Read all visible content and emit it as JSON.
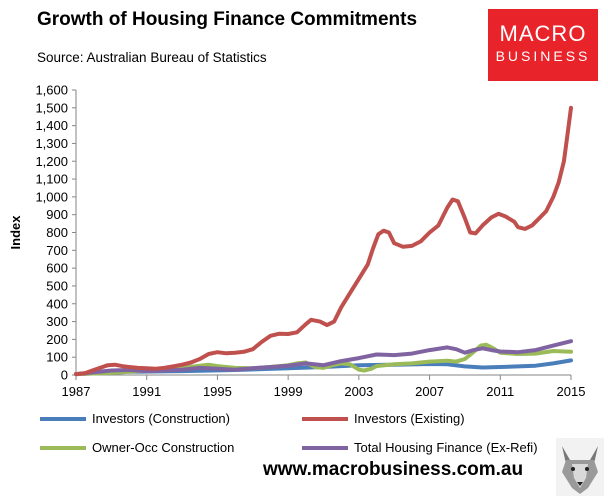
{
  "header": {
    "title": "Growth of Housing Finance Commitments",
    "source": "Source: Australian Bureau of Statistics"
  },
  "logo": {
    "line1": "MACRO",
    "line2": "BUSINESS",
    "color": "#e8232a"
  },
  "footer": {
    "url": "www.macrobusiness.com.au",
    "mascot": "wolf-mascot"
  },
  "chart_data": {
    "type": "line",
    "title": "Growth of Housing Finance Commitments",
    "xlabel": "",
    "ylabel": "Index",
    "xlim": [
      1987,
      2015
    ],
    "ylim": [
      0,
      1600
    ],
    "x_ticks": [
      1987,
      1991,
      1995,
      1999,
      2003,
      2007,
      2011,
      2015
    ],
    "y_ticks": [
      0,
      100,
      200,
      300,
      400,
      500,
      600,
      700,
      800,
      900,
      1000,
      1100,
      1200,
      1300,
      1400,
      1500,
      1600
    ],
    "x_tick_labels": [
      "1987",
      "1991",
      "1995",
      "1999",
      "2003",
      "2007",
      "2011",
      "2015"
    ],
    "y_tick_labels": [
      "0",
      "100",
      "200",
      "300",
      "400",
      "500",
      "600",
      "700",
      "800",
      "900",
      "1,000",
      "1,100",
      "1,200",
      "1,300",
      "1,400",
      "1,500",
      "1,600"
    ],
    "grid": false,
    "legend_position": "bottom",
    "series": [
      {
        "name": "Investors (Construction)",
        "color": "#4a7eba",
        "points": [
          [
            1987,
            5
          ],
          [
            1990,
            18
          ],
          [
            1993,
            22
          ],
          [
            1996,
            28
          ],
          [
            1999,
            38
          ],
          [
            2001,
            45
          ],
          [
            2003,
            55
          ],
          [
            2005,
            58
          ],
          [
            2007,
            62
          ],
          [
            2008,
            60
          ],
          [
            2009,
            48
          ],
          [
            2010,
            42
          ],
          [
            2011,
            45
          ],
          [
            2012,
            48
          ],
          [
            2013,
            52
          ],
          [
            2014,
            65
          ],
          [
            2015,
            82
          ]
        ]
      },
      {
        "name": "Investors (Existing)",
        "color": "#c0504d",
        "points": [
          [
            1987,
            5
          ],
          [
            1987.5,
            10
          ],
          [
            1988,
            28
          ],
          [
            1988.5,
            45
          ],
          [
            1988.8,
            55
          ],
          [
            1989.2,
            58
          ],
          [
            1989.6,
            50
          ],
          [
            1990,
            45
          ],
          [
            1990.5,
            40
          ],
          [
            1991,
            38
          ],
          [
            1991.5,
            35
          ],
          [
            1992,
            40
          ],
          [
            1992.5,
            48
          ],
          [
            1993,
            58
          ],
          [
            1993.5,
            70
          ],
          [
            1994,
            90
          ],
          [
            1994.5,
            118
          ],
          [
            1995,
            128
          ],
          [
            1995.5,
            122
          ],
          [
            1996,
            125
          ],
          [
            1996.5,
            130
          ],
          [
            1997,
            145
          ],
          [
            1997.5,
            185
          ],
          [
            1998,
            220
          ],
          [
            1998.5,
            232
          ],
          [
            1999,
            230
          ],
          [
            1999.5,
            240
          ],
          [
            2000,
            285
          ],
          [
            2000.3,
            310
          ],
          [
            2000.8,
            300
          ],
          [
            2001.2,
            280
          ],
          [
            2001.6,
            300
          ],
          [
            2002,
            380
          ],
          [
            2002.5,
            460
          ],
          [
            2003,
            540
          ],
          [
            2003.5,
            620
          ],
          [
            2003.8,
            710
          ],
          [
            2004.1,
            790
          ],
          [
            2004.4,
            810
          ],
          [
            2004.7,
            800
          ],
          [
            2005,
            740
          ],
          [
            2005.5,
            720
          ],
          [
            2006,
            725
          ],
          [
            2006.5,
            750
          ],
          [
            2007,
            800
          ],
          [
            2007.5,
            840
          ],
          [
            2008,
            940
          ],
          [
            2008.3,
            985
          ],
          [
            2008.6,
            975
          ],
          [
            2009,
            880
          ],
          [
            2009.3,
            800
          ],
          [
            2009.6,
            795
          ],
          [
            2010,
            840
          ],
          [
            2010.5,
            885
          ],
          [
            2010.9,
            905
          ],
          [
            2011.3,
            890
          ],
          [
            2011.8,
            860
          ],
          [
            2012,
            830
          ],
          [
            2012.4,
            820
          ],
          [
            2012.8,
            840
          ],
          [
            2013.2,
            880
          ],
          [
            2013.6,
            920
          ],
          [
            2014,
            1000
          ],
          [
            2014.3,
            1080
          ],
          [
            2014.6,
            1200
          ],
          [
            2014.8,
            1350
          ],
          [
            2015,
            1500
          ]
        ]
      },
      {
        "name": "Owner-Occ Construction",
        "color": "#9bbb59",
        "points": [
          [
            1987,
            5
          ],
          [
            1989,
            12
          ],
          [
            1990,
            18
          ],
          [
            1991,
            25
          ],
          [
            1992,
            32
          ],
          [
            1993,
            40
          ],
          [
            1994,
            52
          ],
          [
            1994.5,
            58
          ],
          [
            1995,
            50
          ],
          [
            1996,
            40
          ],
          [
            1997,
            38
          ],
          [
            1998,
            45
          ],
          [
            1999,
            55
          ],
          [
            1999.5,
            65
          ],
          [
            2000,
            70
          ],
          [
            2000.5,
            45
          ],
          [
            2001,
            40
          ],
          [
            2001.5,
            55
          ],
          [
            2002,
            65
          ],
          [
            2002.5,
            60
          ],
          [
            2003,
            30
          ],
          [
            2003.3,
            25
          ],
          [
            2003.7,
            35
          ],
          [
            2004,
            50
          ],
          [
            2005,
            60
          ],
          [
            2006,
            65
          ],
          [
            2007,
            75
          ],
          [
            2008,
            80
          ],
          [
            2008.5,
            75
          ],
          [
            2009,
            90
          ],
          [
            2009.5,
            130
          ],
          [
            2009.9,
            165
          ],
          [
            2010.2,
            170
          ],
          [
            2010.6,
            150
          ],
          [
            2011,
            125
          ],
          [
            2012,
            118
          ],
          [
            2013,
            120
          ],
          [
            2014,
            135
          ],
          [
            2015,
            130
          ]
        ]
      },
      {
        "name": "Total Housing Finance (Ex-Refi)",
        "color": "#8064a2",
        "points": [
          [
            1987,
            5
          ],
          [
            1988,
            15
          ],
          [
            1989,
            25
          ],
          [
            1990,
            28
          ],
          [
            1991,
            22
          ],
          [
            1992,
            25
          ],
          [
            1993,
            30
          ],
          [
            1994,
            40
          ],
          [
            1995,
            35
          ],
          [
            1996,
            30
          ],
          [
            1997,
            38
          ],
          [
            1998,
            45
          ],
          [
            1999,
            52
          ],
          [
            2000,
            65
          ],
          [
            2001,
            55
          ],
          [
            2002,
            78
          ],
          [
            2003,
            95
          ],
          [
            2004,
            115
          ],
          [
            2005,
            112
          ],
          [
            2006,
            120
          ],
          [
            2007,
            140
          ],
          [
            2008,
            155
          ],
          [
            2008.5,
            145
          ],
          [
            2009,
            125
          ],
          [
            2009.5,
            140
          ],
          [
            2010,
            150
          ],
          [
            2010.5,
            140
          ],
          [
            2011,
            132
          ],
          [
            2012,
            128
          ],
          [
            2013,
            140
          ],
          [
            2014,
            165
          ],
          [
            2015,
            190
          ]
        ]
      }
    ]
  }
}
